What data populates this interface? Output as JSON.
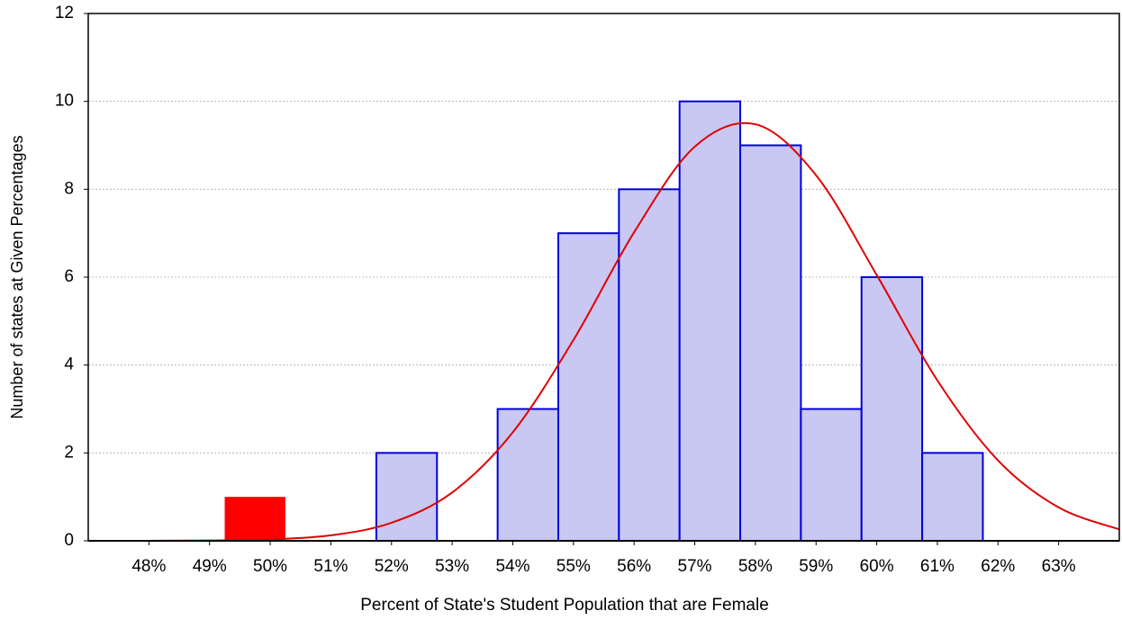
{
  "chart_data": {
    "type": "histogram",
    "x_label": "Percent of State's Student Population that are Female",
    "y_label": "Number of states at Given Percentages",
    "bins": [
      51.75,
      52.75,
      53.75,
      54.75,
      55.75,
      56.75,
      57.75,
      58.75,
      59.75,
      60.75,
      61.75
    ],
    "values": [
      2,
      0,
      3,
      7,
      8,
      10,
      9,
      3,
      6,
      2
    ],
    "color": "#c8c8f2",
    "edge_color": "#0000e0",
    "highlight": {
      "bins": [
        49.25,
        50.25
      ],
      "values": [
        1
      ],
      "color": "#ff0000"
    },
    "fit": {
      "x": [
        47,
        48,
        49,
        50,
        51,
        52,
        53,
        54,
        55,
        56,
        57,
        58,
        59,
        60,
        61,
        62,
        63,
        64
      ],
      "values": [
        0,
        0.001,
        0.007,
        0.032,
        0.125,
        0.41,
        1.1,
        2.47,
        4.57,
        7.02,
        8.97,
        9.48,
        8.32,
        6.05,
        3.65,
        1.83,
        0.76,
        0.26
      ],
      "color": "#e00000"
    },
    "xlim": [
      47,
      64
    ],
    "ylim": [
      0,
      12
    ],
    "xticks": [
      {
        "value": 48,
        "label": "48%"
      },
      {
        "value": 49,
        "label": "49%"
      },
      {
        "value": 50,
        "label": "50%"
      },
      {
        "value": 51,
        "label": "51%"
      },
      {
        "value": 52,
        "label": "52%"
      },
      {
        "value": 53,
        "label": "53%"
      },
      {
        "value": 54,
        "label": "54%"
      },
      {
        "value": 55,
        "label": "55%"
      },
      {
        "value": 56,
        "label": "56%"
      },
      {
        "value": 57,
        "label": "57%"
      },
      {
        "value": 58,
        "label": "58%"
      },
      {
        "value": 59,
        "label": "59%"
      },
      {
        "value": 60,
        "label": "60%"
      },
      {
        "value": 61,
        "label": "61%"
      },
      {
        "value": 62,
        "label": "62%"
      },
      {
        "value": 63,
        "label": "63%"
      }
    ],
    "yticks": [
      0,
      2,
      4,
      6,
      8,
      10,
      12
    ],
    "grid": true
  }
}
